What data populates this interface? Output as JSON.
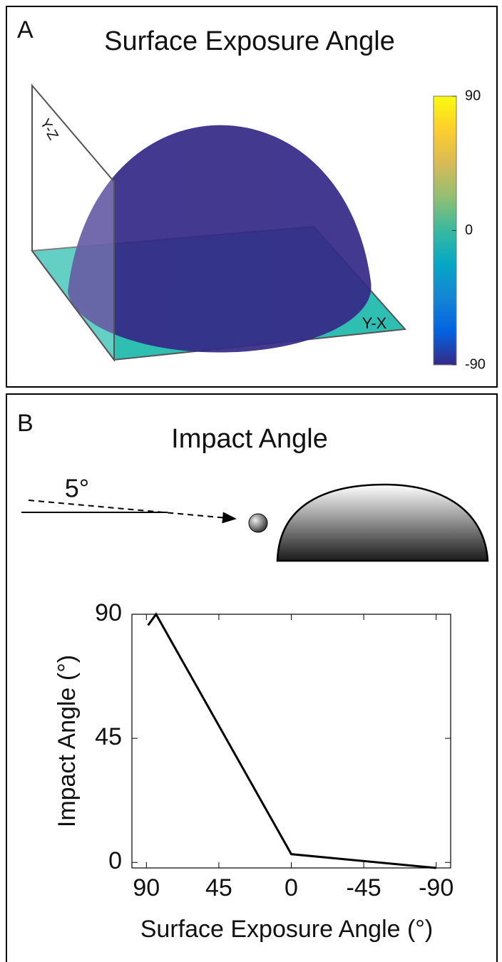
{
  "chart_data": [
    {
      "type": "surface",
      "panel_label": "A",
      "title": "Surface Exposure Angle",
      "plane_labels": [
        "Y-Z",
        "Y-X"
      ],
      "colorbar": {
        "ylim": [
          -90,
          90
        ],
        "yticks": [
          -90,
          0,
          90
        ],
        "colors": [
          "#352a87",
          "#0363e1",
          "#1485d4",
          "#06a7c6",
          "#38b99e",
          "#92bf73",
          "#d9ba56",
          "#fcce2e",
          "#f9fb0e"
        ]
      }
    },
    {
      "type": "line",
      "panel_label": "B",
      "title": "Impact Angle",
      "annotation": "5°",
      "xlabel": "Surface Exposure Angle (°)",
      "ylabel": "Impact Angle (°)",
      "x": [
        89,
        84,
        0,
        -90
      ],
      "values": [
        86,
        90,
        3,
        -2
      ],
      "color": "#000000",
      "xlim": [
        99,
        -99
      ],
      "ylim": [
        -2,
        90
      ],
      "xticks": [
        90,
        45,
        0,
        -45,
        -90
      ],
      "yticks": [
        0,
        45,
        90
      ]
    }
  ]
}
